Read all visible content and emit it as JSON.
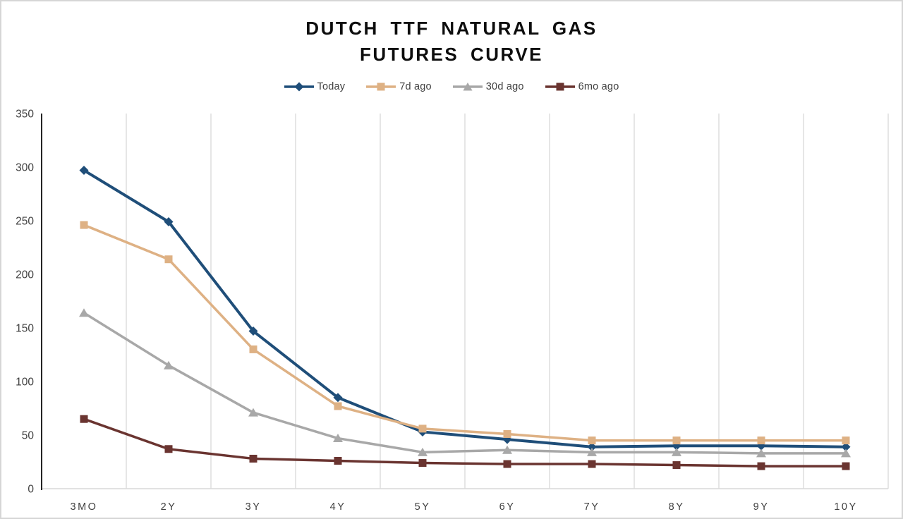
{
  "title": {
    "line1": "DUTCH TTF NATURAL GAS",
    "line2": "FUTURES CURVE"
  },
  "chart_data": {
    "type": "line",
    "title": "DUTCH TTF NATURAL GAS FUTURES CURVE",
    "categories": [
      "3MO",
      "2Y",
      "3Y",
      "4Y",
      "5Y",
      "6Y",
      "7Y",
      "8Y",
      "9Y",
      "10Y"
    ],
    "series": [
      {
        "name": "Today",
        "marker": "diamond",
        "color": "#1f4e79",
        "values": [
          297,
          249,
          147,
          85,
          53,
          46,
          39,
          40,
          40,
          39
        ]
      },
      {
        "name": "7d ago",
        "marker": "square",
        "color": "#deb184",
        "values": [
          246,
          214,
          130,
          77,
          56,
          51,
          45,
          45,
          45,
          45
        ]
      },
      {
        "name": "30d ago",
        "marker": "triangle",
        "color": "#a8a8a8",
        "values": [
          164,
          115,
          71,
          47,
          34,
          36,
          34,
          34,
          33,
          33
        ]
      },
      {
        "name": "6mo ago",
        "marker": "square",
        "color": "#6a3430",
        "values": [
          65,
          37,
          28,
          26,
          24,
          23,
          23,
          22,
          21,
          21
        ]
      }
    ],
    "xlabel": "",
    "ylabel": "",
    "ylim": [
      0,
      350
    ],
    "yticks": [
      0,
      50,
      100,
      150,
      200,
      250,
      300,
      350
    ],
    "grid": "vertical-only",
    "legend_position": "top-center",
    "colors": {
      "gridline": "#d9d9d9",
      "y_axis_line": "#0d0d0d",
      "baseline": "#d9d9d9",
      "tick_label": "#404040",
      "title_text": "#0d0d0d"
    }
  }
}
